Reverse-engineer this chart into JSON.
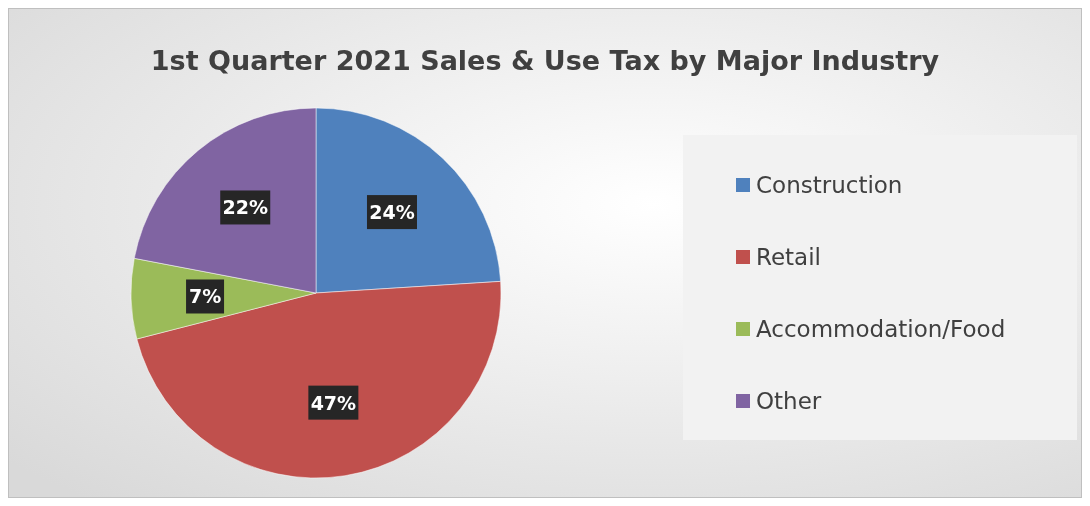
{
  "chart_data": {
    "type": "pie",
    "title": "1st Quarter 2021 Sales & Use Tax by Major Industry",
    "categories": [
      "Construction",
      "Retail",
      "Accommodation/Food",
      "Other"
    ],
    "values": [
      24,
      47,
      7,
      22
    ],
    "colors": [
      "#4f81bd",
      "#c0504d",
      "#9bbb59",
      "#8064a2"
    ],
    "value_labels": [
      "24%",
      "47%",
      "7%",
      "22%"
    ],
    "legend": "right"
  }
}
